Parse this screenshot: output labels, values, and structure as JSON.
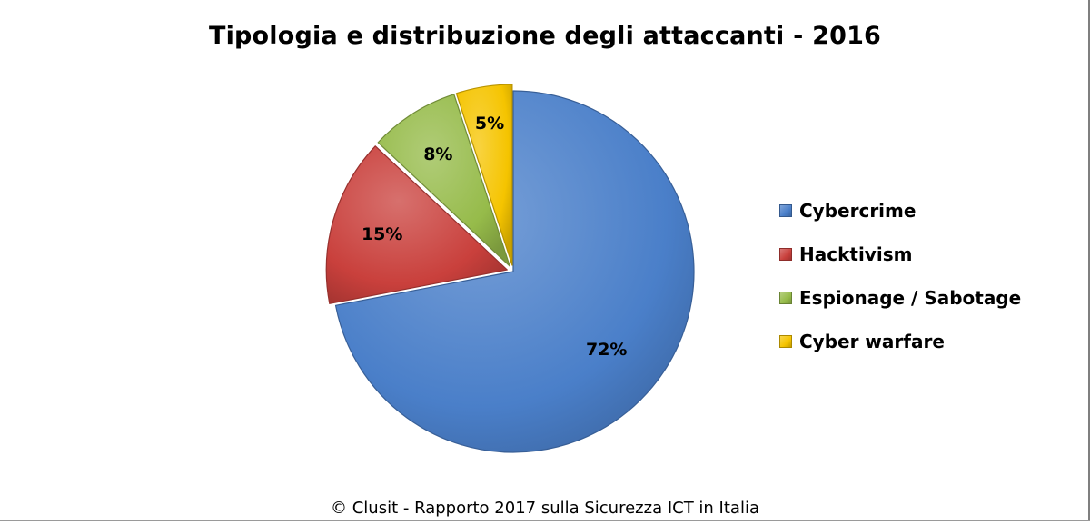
{
  "chart_data": {
    "type": "pie",
    "title": "Tipologia e distribuzione degli attaccanti -  2016",
    "categories": [
      "Cybercrime",
      "Hacktivism",
      "Espionage / Sabotage",
      "Cyber warfare"
    ],
    "values": [
      72,
      15,
      8,
      5
    ],
    "data_labels": [
      "72%",
      "15%",
      "8%",
      "5%"
    ],
    "colors": [
      "#4a7fc9",
      "#c9403c",
      "#96bb4a",
      "#f5c400"
    ],
    "legend_placement": "right",
    "source": "© Clusit - Rapporto 2017 sulla Sicurezza ICT in Italia"
  }
}
